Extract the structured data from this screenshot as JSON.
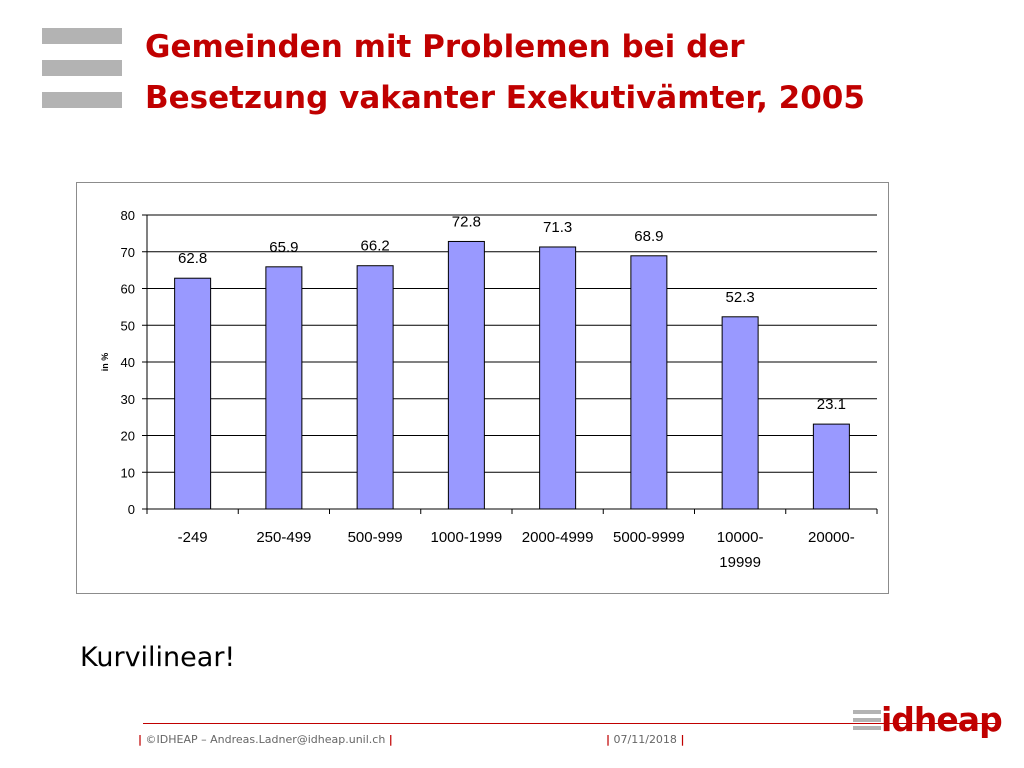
{
  "slide": {
    "title_line1": "Gemeinden mit Problemen bei der",
    "title_line2": "Besetzung vakanter Exekutivämter, 2005",
    "note": "Kurvilinear!"
  },
  "footer": {
    "left_pipe_open": "|",
    "left_text": "©IDHEAP – Andreas.Ladner@idheap.unil.ch",
    "left_pipe_close": "|",
    "right_pipe_open": "|",
    "date": "07/11/2018",
    "right_pipe_close": "|",
    "brand": "idheap"
  },
  "colors": {
    "title": "#c00000",
    "bar_fill": "#9999ff",
    "bar_stroke": "#000000",
    "grid": "#000000",
    "brand": "#c00000",
    "logo_gray": "#b3b3b3"
  },
  "icons": {
    "logo": "three-horizontal-bars-logo",
    "brand": "idheap-wordmark"
  },
  "chart_data": {
    "type": "bar",
    "categories": [
      "-249",
      "250-499",
      "500-999",
      "1000-1999",
      "2000-4999",
      "5000-9999",
      "10000-19999",
      "20000-"
    ],
    "category_lines": [
      [
        "-249"
      ],
      [
        "250-499"
      ],
      [
        "500-999"
      ],
      [
        "1000-1999"
      ],
      [
        "2000-4999"
      ],
      [
        "5000-9999"
      ],
      [
        "10000-",
        "19999"
      ],
      [
        "20000-"
      ]
    ],
    "values": [
      62.8,
      65.9,
      66.2,
      72.8,
      71.3,
      68.9,
      52.3,
      23.1
    ],
    "value_labels": [
      "62.8",
      "65.9",
      "66.2",
      "72.8",
      "71.3",
      "68.9",
      "52.3",
      "23.1"
    ],
    "title": "",
    "xlabel": "",
    "ylabel": "in %",
    "ylim": [
      0,
      80
    ],
    "yticks": [
      0,
      10,
      20,
      30,
      40,
      50,
      60,
      70,
      80
    ],
    "grid": true,
    "legend": "none"
  }
}
